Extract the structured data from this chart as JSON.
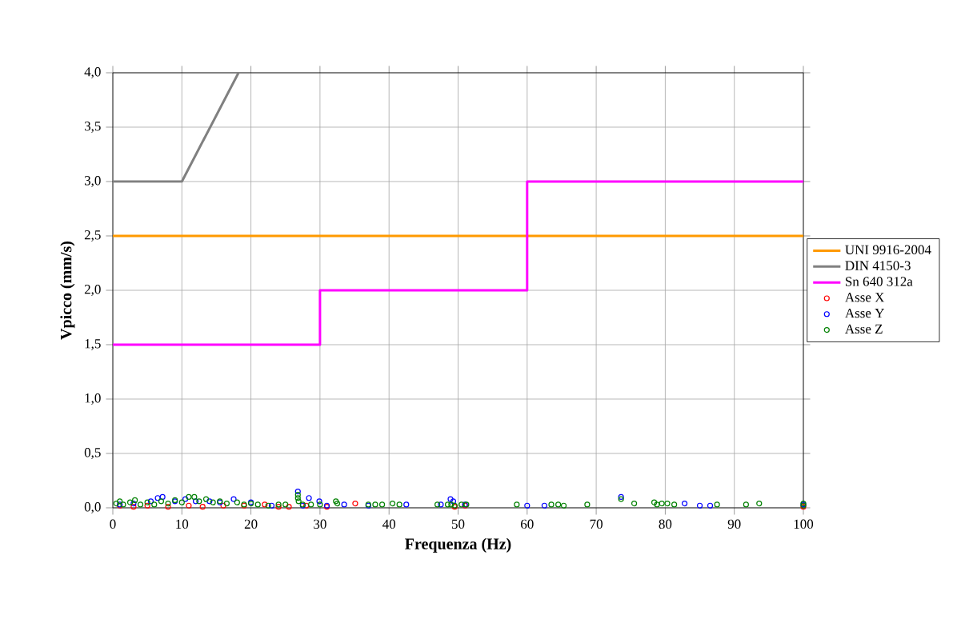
{
  "chart_data": {
    "type": "scatter",
    "xlabel": "Frequenza (Hz)",
    "ylabel": "Vpicco (mm/s)",
    "xlim": [
      0,
      100
    ],
    "ylim": [
      0,
      4
    ],
    "xticks": [
      0,
      10,
      20,
      30,
      40,
      50,
      60,
      70,
      80,
      90,
      100
    ],
    "yticks": [
      {
        "value": 0,
        "label": "0,0"
      },
      {
        "value": 0.5,
        "label": "0,5"
      },
      {
        "value": 1,
        "label": "1,0"
      },
      {
        "value": 1.5,
        "label": "1,5"
      },
      {
        "value": 2,
        "label": "2,0"
      },
      {
        "value": 2.5,
        "label": "2,5"
      },
      {
        "value": 3,
        "label": "3,0"
      },
      {
        "value": 3.5,
        "label": "3,5"
      },
      {
        "value": 4,
        "label": "4,0"
      }
    ],
    "grid": true,
    "legend": "right",
    "marker": "circle",
    "series": [
      {
        "name": "UNI 9916-2004",
        "type": "line",
        "marker": "none",
        "color": "#ff9900",
        "x": [
          0,
          100
        ],
        "values": [
          2.5,
          2.5
        ]
      },
      {
        "name": "DIN 4150-3",
        "type": "line",
        "marker": "none",
        "color": "#808080",
        "x": [
          0,
          10,
          18.2
        ],
        "values": [
          3,
          3,
          4
        ]
      },
      {
        "name": "Sn 640 312a",
        "type": "line",
        "marker": "none",
        "color": "#ff00ff",
        "x": [
          0,
          30,
          30,
          60,
          60,
          100
        ],
        "values": [
          1.5,
          1.5,
          2,
          2,
          3,
          3
        ]
      },
      {
        "name": "Asse X",
        "color": "#ff0000",
        "x": [
          1,
          3,
          5,
          8,
          11,
          13,
          16,
          19,
          22,
          24,
          25.5,
          28,
          31,
          35.1,
          49.5,
          51,
          100
        ],
        "values": [
          0.02,
          0.01,
          0.02,
          0.01,
          0.02,
          0.01,
          0.02,
          0.02,
          0.03,
          0.01,
          0.01,
          0.02,
          0.01,
          0.04,
          0.01,
          0.02,
          0.01
        ]
      },
      {
        "name": "Asse Y",
        "color": "#0000ff",
        "x": [
          1,
          3,
          5.5,
          6.5,
          7.2,
          9,
          10.5,
          12,
          14,
          15.5,
          17.5,
          20,
          23,
          26.8,
          27.5,
          28.4,
          29.9,
          31,
          33.5,
          37,
          42.5,
          47.5,
          48.9,
          49.3,
          51,
          60,
          62.5,
          73.6,
          82.8,
          85,
          86.5,
          100
        ],
        "values": [
          0.03,
          0.04,
          0.06,
          0.09,
          0.1,
          0.06,
          0.08,
          0.06,
          0.06,
          0.05,
          0.08,
          0.05,
          0.02,
          0.15,
          0.02,
          0.09,
          0.06,
          0.02,
          0.03,
          0.02,
          0.03,
          0.03,
          0.08,
          0.06,
          0.03,
          0.02,
          0.02,
          0.1,
          0.04,
          0.02,
          0.02,
          0.03
        ]
      },
      {
        "name": "Asse Z",
        "color": "#008000",
        "x": [
          0.5,
          1,
          1.5,
          2.5,
          3.2,
          4,
          5,
          6,
          7,
          8,
          9,
          10,
          11,
          11.8,
          12.5,
          13.5,
          14.5,
          15.5,
          16.5,
          18,
          19,
          20,
          21,
          22.5,
          24,
          25,
          26.8,
          26.8,
          26.9,
          27.5,
          28.7,
          30,
          32.3,
          32.5,
          37,
          38,
          39,
          40.5,
          41.5,
          47,
          48.5,
          49,
          49.5,
          50.5,
          51.2,
          58.5,
          63.5,
          64.5,
          65.3,
          68.7,
          73.6,
          75.5,
          78.4,
          78.8,
          79.5,
          80.3,
          81.3,
          87.5,
          91.7,
          93.6,
          100,
          100
        ],
        "values": [
          0.04,
          0.06,
          0.03,
          0.05,
          0.07,
          0.03,
          0.05,
          0.03,
          0.06,
          0.04,
          0.07,
          0.05,
          0.1,
          0.1,
          0.06,
          0.08,
          0.05,
          0.06,
          0.04,
          0.05,
          0.03,
          0.04,
          0.03,
          0.02,
          0.03,
          0.03,
          0.12,
          0.09,
          0.06,
          0.03,
          0.03,
          0.03,
          0.06,
          0.04,
          0.03,
          0.03,
          0.03,
          0.04,
          0.03,
          0.03,
          0.03,
          0.03,
          0.02,
          0.03,
          0.03,
          0.03,
          0.03,
          0.03,
          0.02,
          0.03,
          0.08,
          0.04,
          0.05,
          0.03,
          0.04,
          0.04,
          0.03,
          0.03,
          0.03,
          0.04,
          0.04,
          0.02
        ]
      }
    ]
  }
}
